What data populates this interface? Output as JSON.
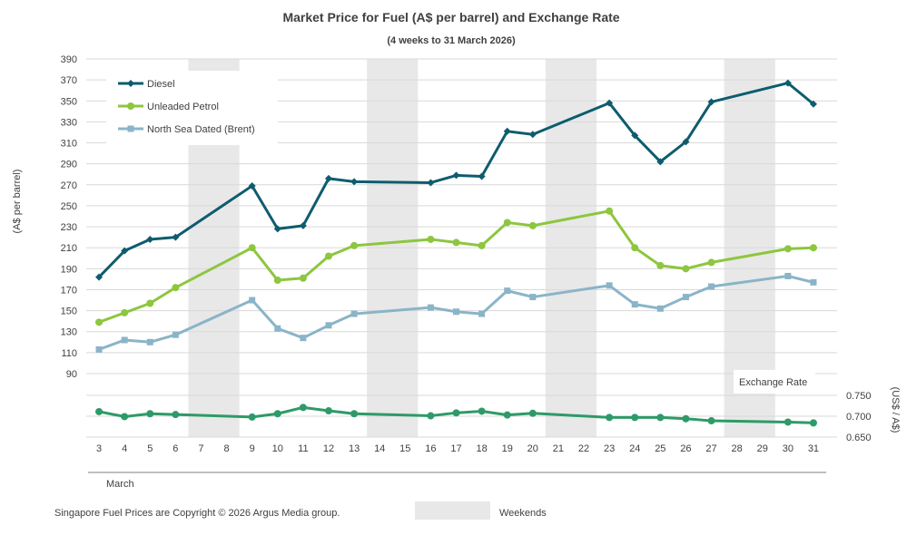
{
  "chart_data": {
    "type": "line",
    "title": "Market Price for Fuel (A$  per barrel) and Exchange  Rate",
    "subtitle": "(4 weeks to 31 March 2026)",
    "ylabel": "(A$ per barrel)",
    "y2label": "(US$ / A$)",
    "xlabel": "March",
    "ylim": [
      90,
      390
    ],
    "yticks": [
      90,
      110,
      130,
      150,
      170,
      190,
      210,
      230,
      250,
      270,
      290,
      310,
      330,
      350,
      370,
      390
    ],
    "y2lim": [
      0.65,
      0.75
    ],
    "y2ticks": [
      "0.650",
      "0.700",
      "0.750"
    ],
    "x": [
      3,
      4,
      5,
      6,
      7,
      8,
      9,
      10,
      11,
      12,
      13,
      14,
      15,
      16,
      17,
      18,
      19,
      20,
      21,
      22,
      23,
      24,
      25,
      26,
      27,
      28,
      29,
      30,
      31
    ],
    "weekends": [
      [
        7,
        8
      ],
      [
        14,
        15
      ],
      [
        21,
        22
      ],
      [
        28,
        29
      ]
    ],
    "series": [
      {
        "name": "Diesel",
        "color": "#0E5C6E",
        "marker": "diamond",
        "points": [
          [
            3,
            182
          ],
          [
            4,
            207
          ],
          [
            5,
            218
          ],
          [
            6,
            220
          ],
          [
            9,
            269
          ],
          [
            10,
            228
          ],
          [
            11,
            231
          ],
          [
            12,
            276
          ],
          [
            13,
            273
          ],
          [
            16,
            272
          ],
          [
            17,
            279
          ],
          [
            18,
            278
          ],
          [
            19,
            321
          ],
          [
            20,
            318
          ],
          [
            23,
            348
          ],
          [
            24,
            317
          ],
          [
            25,
            292
          ],
          [
            26,
            311
          ],
          [
            27,
            349
          ],
          [
            30,
            367
          ],
          [
            31,
            347
          ]
        ]
      },
      {
        "name": "Unleaded Petrol",
        "color": "#8DC63F",
        "marker": "circle",
        "points": [
          [
            3,
            139
          ],
          [
            4,
            148
          ],
          [
            5,
            157
          ],
          [
            6,
            172
          ],
          [
            9,
            210
          ],
          [
            10,
            179
          ],
          [
            11,
            181
          ],
          [
            12,
            202
          ],
          [
            13,
            212
          ],
          [
            16,
            218
          ],
          [
            17,
            215
          ],
          [
            18,
            212
          ],
          [
            19,
            234
          ],
          [
            20,
            231
          ],
          [
            23,
            245
          ],
          [
            24,
            210
          ],
          [
            25,
            193
          ],
          [
            26,
            190
          ],
          [
            27,
            196
          ],
          [
            30,
            209
          ],
          [
            31,
            210
          ]
        ]
      },
      {
        "name": "North Sea Dated (Brent)",
        "color": "#8AB4C8",
        "marker": "square",
        "points": [
          [
            3,
            113
          ],
          [
            4,
            122
          ],
          [
            5,
            120
          ],
          [
            6,
            127
          ],
          [
            9,
            160
          ],
          [
            10,
            133
          ],
          [
            11,
            124
          ],
          [
            12,
            136
          ],
          [
            13,
            147
          ],
          [
            16,
            153
          ],
          [
            17,
            149
          ],
          [
            18,
            147
          ],
          [
            19,
            169
          ],
          [
            20,
            163
          ],
          [
            23,
            174
          ],
          [
            24,
            156
          ],
          [
            25,
            152
          ],
          [
            26,
            163
          ],
          [
            27,
            173
          ],
          [
            30,
            183
          ],
          [
            31,
            177
          ]
        ]
      }
    ],
    "exchange_rate": {
      "name": "Exchange Rate",
      "color": "#2E9A68",
      "marker": "circle",
      "points": [
        [
          3,
          0.711
        ],
        [
          4,
          0.699
        ],
        [
          5,
          0.706
        ],
        [
          6,
          0.704
        ],
        [
          9,
          0.698
        ],
        [
          10,
          0.706
        ],
        [
          11,
          0.721
        ],
        [
          12,
          0.713
        ],
        [
          13,
          0.706
        ],
        [
          16,
          0.701
        ],
        [
          17,
          0.708
        ],
        [
          18,
          0.712
        ],
        [
          19,
          0.703
        ],
        [
          20,
          0.707
        ],
        [
          23,
          0.697
        ],
        [
          24,
          0.697
        ],
        [
          25,
          0.697
        ],
        [
          26,
          0.694
        ],
        [
          27,
          0.689
        ],
        [
          30,
          0.686
        ],
        [
          31,
          0.684
        ]
      ]
    },
    "legend": [
      "Diesel",
      "Unleaded Petrol",
      "North Sea Dated (Brent)"
    ],
    "legend_position": "top-left"
  },
  "footer": {
    "copyright": "Singapore Fuel Prices are Copyright © 2026 Argus Media group.",
    "weekends_label": "Weekends"
  }
}
